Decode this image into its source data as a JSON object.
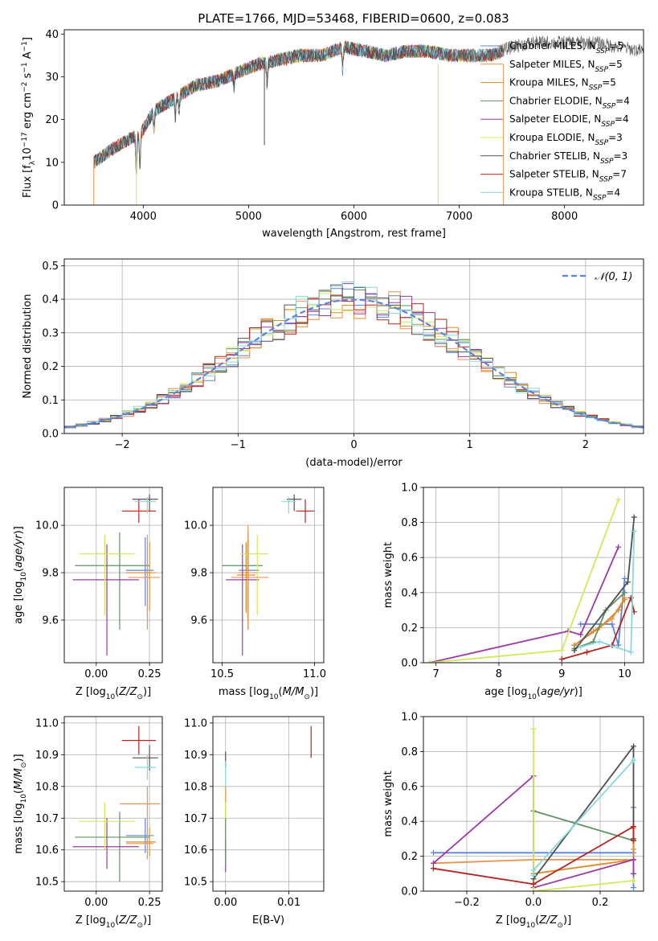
{
  "figure_title": "PLATE=1766, MJD=53468, FIBERID=0600, z=0.083",
  "colors": {
    "chabrier_miles": "#5b84dd",
    "salpeter_miles": "#e8934f",
    "kroupa_miles": "#d98d2a",
    "chabrier_elodie": "#5f9167",
    "salpeter_elodie": "#9b3aa6",
    "kroupa_elodie": "#d3e85b",
    "chabrier_stelib": "#505050",
    "salpeter_stelib": "#b5241f",
    "kroupa_stelib": "#86d8dd",
    "normal_curve": "#5b84dd",
    "grid": "#b0b0b0"
  },
  "chart_data": [
    {
      "type": "line",
      "title": "PLATE=1766, MJD=53468, FIBERID=0600, z=0.083",
      "xlabel": "wavelength [Angstrom, rest frame]",
      "ylabel": "Flux [f_λ10^-17 erg cm^-2 s^-1 A^-1]",
      "xlim": [
        3250,
        8750
      ],
      "ylim": [
        0,
        41
      ],
      "xticks": [
        "4000",
        "5000",
        "6000",
        "7000",
        "8000"
      ],
      "yticks": [
        "0",
        "10",
        "20",
        "30",
        "40"
      ],
      "grid": false,
      "legend_position": "right",
      "series": [
        {
          "name": "Chabrier MILES, N_SSP=5",
          "key": "chabrier_miles"
        },
        {
          "name": "Salpeter MILES, N_SSP=5",
          "key": "salpeter_miles"
        },
        {
          "name": "Kroupa MILES, N_SSP=5",
          "key": "kroupa_miles"
        },
        {
          "name": "Chabrier ELODIE, N_SSP=4",
          "key": "chabrier_elodie"
        },
        {
          "name": "Salpeter ELODIE, N_SSP=4",
          "key": "salpeter_elodie"
        },
        {
          "name": "Kroupa ELODIE, N_SSP=3",
          "key": "kroupa_elodie"
        },
        {
          "name": "Chabrier STELIB, N_SSP=3",
          "key": "chabrier_stelib"
        },
        {
          "name": "Salpeter STELIB, N_SSP=7",
          "key": "salpeter_stelib"
        },
        {
          "name": "Kroupa STELIB, N_SSP=4",
          "key": "kroupa_stelib"
        }
      ],
      "continuum": {
        "x": [
          3530,
          3700,
          3900,
          3960,
          4100,
          4300,
          4500,
          4700,
          4900,
          5100,
          5300,
          5500,
          5700,
          5900,
          6100,
          6300,
          6500,
          6700,
          6900,
          7100,
          7300,
          7400,
          7500,
          7700,
          7900,
          8100,
          8300,
          8500,
          8750
        ],
        "y": [
          10,
          13,
          16,
          16,
          22,
          25,
          28,
          29,
          31,
          33,
          34,
          35,
          35,
          37,
          36,
          35,
          36,
          36,
          35,
          35,
          35,
          36,
          37,
          38,
          38,
          38,
          38,
          37,
          36
        ]
      },
      "spectrum_wavelength_range": [
        3530,
        8750
      ],
      "model_wavelength_range": [
        3530,
        7420
      ],
      "absorption_features": [
        {
          "x": 3934,
          "depth": 0.5
        },
        {
          "x": 3969,
          "depth": 0.45
        },
        {
          "x": 4101,
          "depth": 0.2
        },
        {
          "x": 4304,
          "depth": 0.18
        },
        {
          "x": 4340,
          "depth": 0.15
        },
        {
          "x": 4861,
          "depth": 0.1
        },
        {
          "x": 5175,
          "depth": 0.15
        },
        {
          "x": 5893,
          "depth": 0.15
        }
      ],
      "spikes": [
        {
          "x": 5150,
          "y": 14
        },
        {
          "x": 6800,
          "y": 0
        },
        {
          "x": 7420,
          "y": 0
        }
      ]
    },
    {
      "type": "line",
      "xlabel": "(data-model)/error",
      "ylabel": "Normed distribution",
      "xlim": [
        -2.5,
        2.5
      ],
      "ylim": [
        0,
        0.52
      ],
      "xticks": [
        "−2",
        "−1",
        "0",
        "1",
        "2"
      ],
      "yticks": [
        "0.0",
        "0.1",
        "0.2",
        "0.3",
        "0.4",
        "0.5"
      ],
      "grid": true,
      "legend_position": "top-right",
      "legend": [
        "𝒩(0, 1)"
      ],
      "histogram": {
        "bin_width": 0.1,
        "x_start": -2.5,
        "description_values": "9 step-histograms scattering around the standard normal density",
        "series_keys": [
          "chabrier_miles",
          "salpeter_miles",
          "kroupa_miles",
          "chabrier_elodie",
          "salpeter_elodie",
          "kroupa_elodie",
          "chabrier_stelib",
          "salpeter_stelib",
          "kroupa_stelib"
        ]
      },
      "curve": {
        "name": "𝒩(0, 1)",
        "mean": 0,
        "sigma": 1
      }
    },
    {
      "type": "scatter",
      "xlabel": "Z [log10(Z/Z⊙)]",
      "ylabel": "age  [log10(age/yr)]",
      "xlim": [
        -0.15,
        0.31
      ],
      "ylim": [
        9.42,
        10.16
      ],
      "xticks": [
        "0.00",
        "0.25"
      ],
      "yticks": [
        "9.6",
        "9.8",
        "10.0"
      ],
      "grid": true,
      "points": [
        {
          "key": "chabrier_miles",
          "x": 0.23,
          "y": 9.81,
          "xlo": 0.14,
          "xhi": 0.27,
          "ylo": 9.66,
          "yhi": 9.95
        },
        {
          "key": "salpeter_miles",
          "x": 0.24,
          "y": 9.8,
          "xlo": 0.14,
          "xhi": 0.27,
          "ylo": 9.63,
          "yhi": 9.92
        },
        {
          "key": "kroupa_miles",
          "x": 0.25,
          "y": 9.8,
          "xlo": 0.14,
          "xhi": 0.28,
          "ylo": 9.64,
          "yhi": 9.93
        },
        {
          "key": "chabrier_elodie",
          "x": 0.11,
          "y": 9.83,
          "xlo": -0.1,
          "xhi": 0.25,
          "ylo": 9.56,
          "yhi": 9.97
        },
        {
          "key": "salpeter_elodie",
          "x": 0.05,
          "y": 9.77,
          "xlo": -0.11,
          "xhi": 0.2,
          "ylo": 9.45,
          "yhi": 9.92
        },
        {
          "key": "kroupa_elodie",
          "x": 0.04,
          "y": 9.88,
          "xlo": -0.08,
          "xhi": 0.18,
          "ylo": 9.62,
          "yhi": 9.96
        },
        {
          "key": "chabrier_stelib",
          "x": 0.25,
          "y": 10.11,
          "xlo": 0.17,
          "xhi": 0.29,
          "ylo": 10.06,
          "yhi": 10.13
        },
        {
          "key": "salpeter_stelib",
          "x": 0.2,
          "y": 10.06,
          "xlo": 0.12,
          "xhi": 0.28,
          "ylo": 10.01,
          "yhi": 10.11
        },
        {
          "key": "kroupa_stelib",
          "x": 0.24,
          "y": 10.1,
          "xlo": 0.18,
          "xhi": 0.28,
          "ylo": 10.05,
          "yhi": 10.12
        },
        {
          "key": "salpeter_miles",
          "x": 0.24,
          "y": 9.78,
          "xlo": 0.15,
          "xhi": 0.3,
          "ylo": 9.56,
          "yhi": 9.96
        }
      ]
    },
    {
      "type": "scatter",
      "xlabel": "mass [log10(M/M⊙)]",
      "ylabel": "",
      "xlim": [
        10.45,
        11.05
      ],
      "ylim": [
        9.42,
        10.16
      ],
      "xticks": [
        "10.5",
        "11.0"
      ],
      "yticks": [
        "9.6",
        "9.8",
        "10.0"
      ],
      "grid": true,
      "points": [
        {
          "key": "chabrier_miles",
          "x": 10.64,
          "y": 9.81,
          "xlo": 10.59,
          "xhi": 10.7,
          "ylo": 9.66,
          "yhi": 9.95
        },
        {
          "key": "salpeter_miles",
          "x": 10.63,
          "y": 9.8,
          "xlo": 10.58,
          "xhi": 10.69,
          "ylo": 9.63,
          "yhi": 9.92
        },
        {
          "key": "kroupa_miles",
          "x": 10.63,
          "y": 9.79,
          "xlo": 10.58,
          "xhi": 10.68,
          "ylo": 9.64,
          "yhi": 9.93
        },
        {
          "key": "chabrier_elodie",
          "x": 10.64,
          "y": 9.83,
          "xlo": 10.5,
          "xhi": 10.72,
          "ylo": 9.56,
          "yhi": 9.97
        },
        {
          "key": "salpeter_elodie",
          "x": 10.61,
          "y": 9.77,
          "xlo": 10.52,
          "xhi": 10.7,
          "ylo": 9.45,
          "yhi": 9.92
        },
        {
          "key": "kroupa_elodie",
          "x": 10.69,
          "y": 9.88,
          "xlo": 10.6,
          "xhi": 10.75,
          "ylo": 9.62,
          "yhi": 9.96
        },
        {
          "key": "chabrier_stelib",
          "x": 10.89,
          "y": 10.11,
          "xlo": 10.85,
          "xhi": 10.93,
          "ylo": 10.06,
          "yhi": 10.13
        },
        {
          "key": "salpeter_stelib",
          "x": 10.95,
          "y": 10.06,
          "xlo": 10.9,
          "xhi": 11.0,
          "ylo": 10.01,
          "yhi": 10.11
        },
        {
          "key": "kroupa_stelib",
          "x": 10.86,
          "y": 10.1,
          "xlo": 10.82,
          "xhi": 10.9,
          "ylo": 10.05,
          "yhi": 10.12
        },
        {
          "key": "salpeter_miles",
          "x": 10.64,
          "y": 9.78,
          "xlo": 10.55,
          "xhi": 10.75,
          "ylo": 9.56,
          "yhi": 10.0
        }
      ]
    },
    {
      "type": "line",
      "xlabel": "age  [log10(age/yr)]",
      "ylabel": "mass weight",
      "xlim": [
        6.8,
        10.3
      ],
      "ylim": [
        0,
        1.0
      ],
      "xticks": [
        "7",
        "8",
        "9",
        "10"
      ],
      "yticks": [
        "0.0",
        "0.2",
        "0.4",
        "0.6",
        "0.8",
        "1.0"
      ],
      "grid": true,
      "series": [
        {
          "key": "chabrier_miles",
          "x": [
            9.3,
            9.8,
            9.9,
            10.0
          ],
          "y": [
            0.22,
            0.22,
            0.1,
            0.48
          ]
        },
        {
          "key": "salpeter_miles",
          "x": [
            9.2,
            9.5,
            9.8,
            10.0
          ],
          "y": [
            0.1,
            0.18,
            0.25,
            0.37
          ]
        },
        {
          "key": "kroupa_miles",
          "x": [
            9.2,
            9.6,
            9.9,
            10.0
          ],
          "y": [
            0.1,
            0.2,
            0.3,
            0.36
          ]
        },
        {
          "key": "chabrier_elodie",
          "x": [
            9.2,
            9.5,
            9.7,
            10.0
          ],
          "y": [
            0.08,
            0.12,
            0.3,
            0.4
          ]
        },
        {
          "key": "salpeter_elodie",
          "x": [
            6.9,
            9.1,
            9.3,
            9.9
          ],
          "y": [
            0.0,
            0.18,
            0.16,
            0.66
          ]
        },
        {
          "key": "kroupa_elodie",
          "x": [
            6.9,
            9.0,
            9.9
          ],
          "y": [
            0.0,
            0.07,
            0.93
          ]
        },
        {
          "key": "chabrier_stelib",
          "x": [
            9.2,
            10.05,
            10.15
          ],
          "y": [
            0.07,
            0.46,
            0.83
          ]
        },
        {
          "key": "salpeter_stelib",
          "x": [
            9.0,
            9.4,
            9.8,
            10.1,
            10.15
          ],
          "y": [
            0.02,
            0.06,
            0.1,
            0.37,
            0.29
          ]
        },
        {
          "key": "kroupa_stelib",
          "x": [
            9.3,
            9.6,
            10.1,
            10.15
          ],
          "y": [
            0.09,
            0.12,
            0.06,
            0.75
          ]
        }
      ]
    },
    {
      "type": "scatter",
      "xlabel": "Z [log10(Z/Z⊙)]",
      "ylabel": "mass [log10(M/M⊙)]",
      "xlim": [
        -0.15,
        0.31
      ],
      "ylim": [
        10.47,
        11.02
      ],
      "xticks": [
        "0.00",
        "0.25"
      ],
      "yticks": [
        "10.5",
        "10.6",
        "10.7",
        "10.8",
        "10.9",
        "11.0"
      ],
      "grid": true,
      "points": [
        {
          "key": "chabrier_miles",
          "x": 0.23,
          "y": 10.645,
          "xlo": 0.14,
          "xhi": 0.27,
          "ylo": 10.59,
          "yhi": 10.7
        },
        {
          "key": "salpeter_miles",
          "x": 0.24,
          "y": 10.62,
          "xlo": 0.14,
          "xhi": 0.27,
          "ylo": 10.57,
          "yhi": 10.68
        },
        {
          "key": "kroupa_miles",
          "x": 0.25,
          "y": 10.625,
          "xlo": 0.14,
          "xhi": 0.28,
          "ylo": 10.58,
          "yhi": 10.67
        },
        {
          "key": "chabrier_elodie",
          "x": 0.11,
          "y": 10.64,
          "xlo": -0.1,
          "xhi": 0.25,
          "ylo": 10.5,
          "yhi": 10.72
        },
        {
          "key": "salpeter_elodie",
          "x": 0.05,
          "y": 10.61,
          "xlo": -0.11,
          "xhi": 0.2,
          "ylo": 10.54,
          "yhi": 10.7
        },
        {
          "key": "kroupa_elodie",
          "x": 0.04,
          "y": 10.69,
          "xlo": -0.08,
          "xhi": 0.18,
          "ylo": 10.6,
          "yhi": 10.75
        },
        {
          "key": "chabrier_stelib",
          "x": 0.25,
          "y": 10.89,
          "xlo": 0.17,
          "xhi": 0.29,
          "ylo": 10.85,
          "yhi": 10.93
        },
        {
          "key": "salpeter_stelib",
          "x": 0.2,
          "y": 10.945,
          "xlo": 0.12,
          "xhi": 0.28,
          "ylo": 10.9,
          "yhi": 10.99
        },
        {
          "key": "kroupa_stelib",
          "x": 0.24,
          "y": 10.86,
          "xlo": 0.18,
          "xhi": 0.28,
          "ylo": 10.82,
          "yhi": 10.9
        },
        {
          "key": "salpeter_miles",
          "x": 0.24,
          "y": 10.745,
          "xlo": 0.11,
          "xhi": 0.3,
          "ylo": 10.63,
          "yhi": 10.8
        }
      ]
    },
    {
      "type": "scatter",
      "xlabel": "E(B-V)",
      "ylabel": "",
      "xlim": [
        -0.002,
        0.0155
      ],
      "ylim": [
        10.47,
        11.02
      ],
      "xticks": [
        "0.00",
        "0.01"
      ],
      "yticks": [
        "10.5",
        "10.6",
        "10.7",
        "10.8",
        "10.9",
        "11.0"
      ],
      "grid": true,
      "points": [
        {
          "key": "chabrier_stelib",
          "x": 0.0,
          "y": 10.89,
          "xlo": 0.0,
          "xhi": 0.0,
          "ylo": 10.86,
          "yhi": 10.91
        },
        {
          "key": "kroupa_stelib",
          "x": 0.0,
          "y": 10.85,
          "xlo": 0.0,
          "xhi": 0.0,
          "ylo": 10.79,
          "yhi": 10.88
        },
        {
          "key": "salpeter_miles",
          "x": 0.0,
          "y": 10.75,
          "xlo": 0.0,
          "xhi": 0.0,
          "ylo": 10.68,
          "yhi": 10.8
        },
        {
          "key": "kroupa_elodie",
          "x": 0.0,
          "y": 10.68,
          "xlo": 0.0,
          "xhi": 0.0,
          "ylo": 10.58,
          "yhi": 10.75
        },
        {
          "key": "salpeter_elodie",
          "x": 0.0,
          "y": 10.58,
          "xlo": 0.0,
          "xhi": 0.0,
          "ylo": 10.53,
          "yhi": 10.63
        },
        {
          "key": "chabrier_elodie",
          "x": 0.0,
          "y": 10.63,
          "xlo": 0.0,
          "xhi": 0.0,
          "ylo": 10.55,
          "yhi": 10.7
        },
        {
          "key": "salpeter_stelib",
          "x": 0.0135,
          "y": 10.945,
          "xlo": 0.0135,
          "xhi": 0.0135,
          "ylo": 10.89,
          "yhi": 10.99
        }
      ]
    },
    {
      "type": "line",
      "xlabel": "Z [log10(Z/Z⊙)]",
      "ylabel": "mass weight",
      "xlim": [
        -0.33,
        0.33
      ],
      "ylim": [
        0,
        1.0
      ],
      "xticks": [
        "−0.2",
        "0.0",
        "0.2"
      ],
      "yticks": [
        "0.0",
        "0.2",
        "0.4",
        "0.6",
        "0.8",
        "1.0"
      ],
      "grid": true,
      "series": [
        {
          "key": "chabrier_miles",
          "x": [
            -0.3,
            0.3,
            0.3,
            0.3
          ],
          "y": [
            0.22,
            0.22,
            0.48,
            0.02
          ]
        },
        {
          "key": "salpeter_miles",
          "x": [
            -0.3,
            0.0,
            0.3,
            0.3
          ],
          "y": [
            0.16,
            0.18,
            0.18,
            0.24
          ]
        },
        {
          "key": "kroupa_miles",
          "x": [
            0.0,
            0.3,
            0.3
          ],
          "y": [
            0.1,
            0.18,
            0.36
          ]
        },
        {
          "key": "chabrier_elodie",
          "x": [
            0.0,
            0.3
          ],
          "y": [
            0.46,
            0.29
          ]
        },
        {
          "key": "salpeter_elodie",
          "x": [
            -0.3,
            0.0,
            0.0,
            0.3,
            0.3
          ],
          "y": [
            0.16,
            0.66,
            0.02,
            0.18,
            0.1
          ]
        },
        {
          "key": "kroupa_elodie",
          "x": [
            0.0,
            0.0,
            0.0,
            0.3
          ],
          "y": [
            0.0,
            0.93,
            0.0,
            0.06
          ]
        },
        {
          "key": "chabrier_stelib",
          "x": [
            0.0,
            0.3,
            0.3
          ],
          "y": [
            0.07,
            0.83,
            0.3
          ]
        },
        {
          "key": "salpeter_stelib",
          "x": [
            -0.3,
            0.0,
            0.3,
            0.3
          ],
          "y": [
            0.13,
            0.04,
            0.37,
            0.29
          ]
        },
        {
          "key": "kroupa_stelib",
          "x": [
            0.0,
            0.0,
            0.3
          ],
          "y": [
            0.09,
            0.12,
            0.75
          ]
        }
      ]
    }
  ]
}
